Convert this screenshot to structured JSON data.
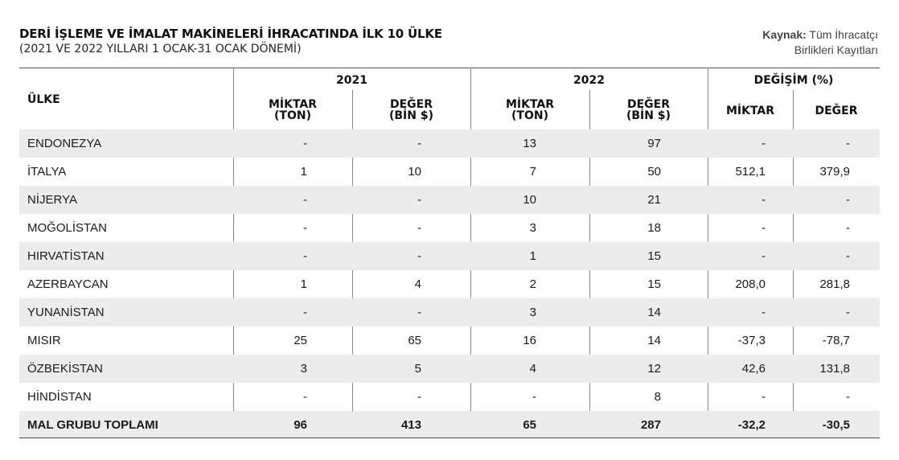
{
  "title": "DERİ İŞLEME VE İMALAT MAKİNELERİ İHRACATINDA İLK 10 ÜLKE",
  "subtitle": "(2021 VE 2022 YILLARI 1 OCAK-31 OCAK DÖNEMİ)",
  "source": {
    "label": "Kaynak:",
    "line1": "Tüm İhracatçı",
    "line2": "Birlikleri Kayıtları"
  },
  "headers": {
    "country": "ÜLKE",
    "year2021": "2021",
    "year2022": "2022",
    "change": "DEĞİŞİM (%)",
    "qty_line1": "MİKTAR",
    "qty_line2": "(TON)",
    "val_line1": "DEĞER",
    "val_line2": "(BİN $)",
    "chg_qty": "MİKTAR",
    "chg_val": "DEĞER"
  },
  "rows": [
    {
      "country": "ENDONEZYA",
      "q2021": "-",
      "v2021": "-",
      "q2022": "13",
      "v2022": "97",
      "cq": "-",
      "cv": "-"
    },
    {
      "country": "İTALYA",
      "q2021": "1",
      "v2021": "10",
      "q2022": "7",
      "v2022": "50",
      "cq": "512,1",
      "cv": "379,9"
    },
    {
      "country": "NİJERYA",
      "q2021": "-",
      "v2021": "-",
      "q2022": "10",
      "v2022": "21",
      "cq": "-",
      "cv": "-"
    },
    {
      "country": "MOĞOLİSTAN",
      "q2021": "-",
      "v2021": "-",
      "q2022": "3",
      "v2022": "18",
      "cq": "-",
      "cv": "-"
    },
    {
      "country": "HIRVATİSTAN",
      "q2021": "-",
      "v2021": "-",
      "q2022": "1",
      "v2022": "15",
      "cq": "-",
      "cv": "-"
    },
    {
      "country": "AZERBAYCAN",
      "q2021": "1",
      "v2021": "4",
      "q2022": "2",
      "v2022": "15",
      "cq": "208,0",
      "cv": "281,8"
    },
    {
      "country": "YUNANİSTAN",
      "q2021": "-",
      "v2021": "-",
      "q2022": "3",
      "v2022": "14",
      "cq": "-",
      "cv": "-"
    },
    {
      "country": "MISIR",
      "q2021": "25",
      "v2021": "65",
      "q2022": "16",
      "v2022": "14",
      "cq": "-37,3",
      "cv": "-78,7"
    },
    {
      "country": "ÖZBEKİSTAN",
      "q2021": "3",
      "v2021": "5",
      "q2022": "4",
      "v2022": "12",
      "cq": "42,6",
      "cv": "131,8"
    },
    {
      "country": "HİNDİSTAN",
      "q2021": "-",
      "v2021": "-",
      "q2022": "-",
      "v2022": "8",
      "cq": "-",
      "cv": "-"
    }
  ],
  "total": {
    "country": "MAL GRUBU TOPLAMI",
    "q2021": "96",
    "v2021": "413",
    "q2022": "65",
    "v2022": "287",
    "cq": "-32,2",
    "cv": "-30,5"
  }
}
